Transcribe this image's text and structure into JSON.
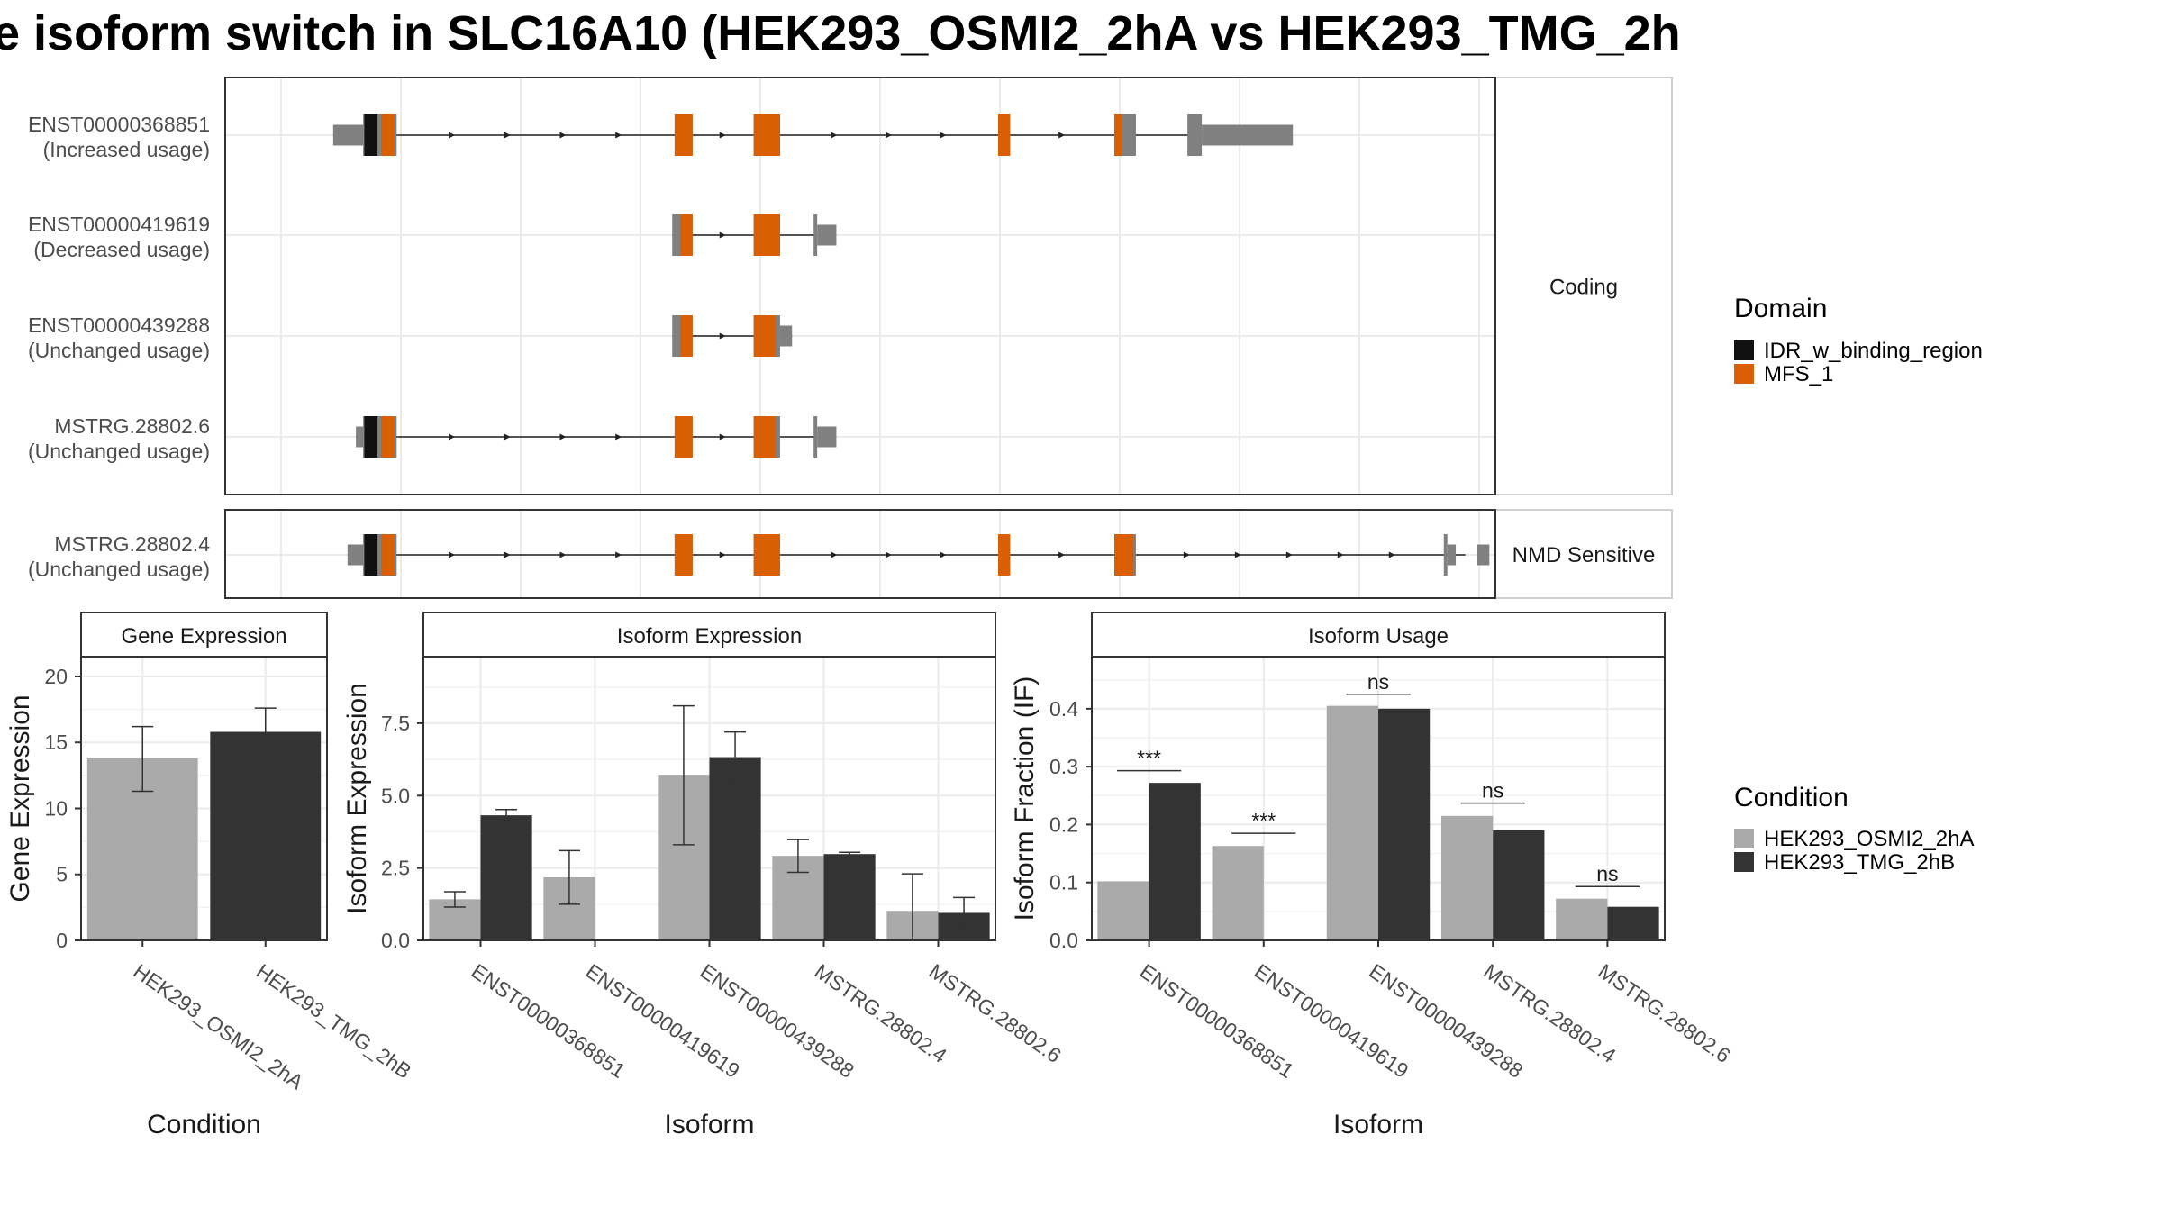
{
  "title": "e isoform switch in SLC16A10 (HEK293_OSMI2_2hA vs HEK293_TMG_2h",
  "colors": {
    "idr": "#111111",
    "mfs": "#d95f02",
    "utr": "#808080",
    "cond_a": "#aaaaaa",
    "cond_b": "#333333",
    "grid": "#ebebeb",
    "strip_bg": "#ffffff",
    "panel_border": "#333333"
  },
  "legends": {
    "domain": {
      "title": "Domain",
      "items": [
        {
          "label": "IDR_w_binding_region",
          "color": "#111111"
        },
        {
          "label": "MFS_1",
          "color": "#d95f02"
        }
      ]
    },
    "condition": {
      "title": "Condition",
      "items": [
        {
          "label": "HEK293_OSMI2_2hA",
          "color": "#aaaaaa"
        },
        {
          "label": "HEK293_TMG_2hB",
          "color": "#333333"
        }
      ]
    }
  },
  "chart_data": [
    {
      "type": "table",
      "name": "structure",
      "facet_labels": [
        "Coding",
        "NMD Sensitive"
      ],
      "transcripts": [
        {
          "id": "ENST00000368851",
          "usage": "(Increased usage)",
          "facet": "Coding",
          "start": 0.045,
          "end": 0.805,
          "exons": [
            {
              "s": 0.045,
              "e": 0.07,
              "h": "utr"
            },
            {
              "s": 0.07,
              "e": 0.085,
              "h": "cds",
              "dom": [
                "idr",
                0.071,
                0.082
              ]
            },
            {
              "s": 0.085,
              "e": 0.098,
              "h": "cds",
              "dom": [
                "mfs",
                0.085,
                0.096
              ]
            },
            {
              "s": 0.33,
              "e": 0.345,
              "h": "cds",
              "dom": [
                "mfs",
                0.33,
                0.345
              ]
            },
            {
              "s": 0.396,
              "e": 0.418,
              "h": "cds",
              "dom": [
                "mfs",
                0.396,
                0.418
              ]
            },
            {
              "s": 0.6,
              "e": 0.61,
              "h": "cds",
              "dom": [
                "mfs",
                0.6,
                0.61
              ]
            },
            {
              "s": 0.697,
              "e": 0.715,
              "h": "cds",
              "dom": [
                "mfs",
                0.697,
                0.703
              ]
            },
            {
              "s": 0.758,
              "e": 0.77,
              "h": "cds"
            },
            {
              "s": 0.77,
              "e": 0.846,
              "h": "utr"
            }
          ]
        },
        {
          "id": "ENST00000419619",
          "usage": "(Decreased usage)",
          "facet": "Coding",
          "start": 0.328,
          "end": 0.462,
          "exons": [
            {
              "s": 0.328,
              "e": 0.345,
              "h": "cds",
              "dom": [
                "mfs",
                0.335,
                0.345
              ]
            },
            {
              "s": 0.396,
              "e": 0.418,
              "h": "cds",
              "dom": [
                "mfs",
                0.396,
                0.418
              ]
            },
            {
              "s": 0.446,
              "e": 0.449,
              "h": "cds"
            },
            {
              "s": 0.449,
              "e": 0.465,
              "h": "utr"
            }
          ]
        },
        {
          "id": "ENST00000439288",
          "usage": "(Unchanged usage)",
          "facet": "Coding",
          "start": 0.328,
          "end": 0.428,
          "exons": [
            {
              "s": 0.328,
              "e": 0.345,
              "h": "cds",
              "dom": [
                "mfs",
                0.335,
                0.345
              ]
            },
            {
              "s": 0.396,
              "e": 0.418,
              "h": "cds",
              "dom": [
                "mfs",
                0.396,
                0.414
              ]
            },
            {
              "s": 0.418,
              "e": 0.428,
              "h": "utr"
            }
          ]
        },
        {
          "id": "MSTRG.28802.6",
          "usage": "(Unchanged usage)",
          "facet": "Coding",
          "start": 0.064,
          "end": 0.462,
          "exons": [
            {
              "s": 0.064,
              "e": 0.07,
              "h": "utr"
            },
            {
              "s": 0.07,
              "e": 0.085,
              "h": "cds",
              "dom": [
                "idr",
                0.071,
                0.082
              ]
            },
            {
              "s": 0.085,
              "e": 0.098,
              "h": "cds",
              "dom": [
                "mfs",
                0.085,
                0.096
              ]
            },
            {
              "s": 0.33,
              "e": 0.345,
              "h": "cds",
              "dom": [
                "mfs",
                0.33,
                0.345
              ]
            },
            {
              "s": 0.396,
              "e": 0.418,
              "h": "cds",
              "dom": [
                "mfs",
                0.396,
                0.414
              ]
            },
            {
              "s": 0.446,
              "e": 0.449,
              "h": "cds"
            },
            {
              "s": 0.449,
              "e": 0.465,
              "h": "utr"
            }
          ]
        },
        {
          "id": "MSTRG.28802.4",
          "usage": "(Unchanged usage)",
          "facet": "NMD Sensitive",
          "start": 0.057,
          "end": 0.99,
          "exons": [
            {
              "s": 0.057,
              "e": 0.07,
              "h": "utr"
            },
            {
              "s": 0.07,
              "e": 0.085,
              "h": "cds",
              "dom": [
                "idr",
                0.071,
                0.082
              ]
            },
            {
              "s": 0.085,
              "e": 0.098,
              "h": "cds",
              "dom": [
                "mfs",
                0.085,
                0.096
              ]
            },
            {
              "s": 0.33,
              "e": 0.345,
              "h": "cds",
              "dom": [
                "mfs",
                0.33,
                0.345
              ]
            },
            {
              "s": 0.396,
              "e": 0.418,
              "h": "cds",
              "dom": [
                "mfs",
                0.396,
                0.418
              ]
            },
            {
              "s": 0.6,
              "e": 0.61,
              "h": "cds",
              "dom": [
                "mfs",
                0.6,
                0.61
              ]
            },
            {
              "s": 0.697,
              "e": 0.715,
              "h": "cds",
              "dom": [
                "mfs",
                0.697,
                0.713
              ]
            },
            {
              "s": 0.972,
              "e": 0.975,
              "h": "cds"
            },
            {
              "s": 0.975,
              "e": 0.982,
              "h": "utr"
            },
            {
              "s": 1.0,
              "e": 1.01,
              "h": "utr"
            }
          ]
        }
      ]
    },
    {
      "type": "bar",
      "title": "Gene Expression",
      "xlabel": "Condition",
      "ylabel": "Gene Expression",
      "ylim": [
        0,
        21.5
      ],
      "yticks": [
        0,
        5,
        10,
        15,
        20
      ],
      "categories": [
        "HEK293_OSMI2_2hA",
        "HEK293_TMG_2hB"
      ],
      "series": [
        {
          "name": "HEK293_OSMI2_2hA",
          "values": [
            13.8,
            null
          ],
          "err_low": [
            11.3,
            null
          ],
          "err_high": [
            16.2,
            null
          ]
        },
        {
          "name": "HEK293_TMG_2hB",
          "values": [
            null,
            15.8
          ],
          "err_low": [
            null,
            14.0
          ],
          "err_high": [
            null,
            17.6
          ]
        }
      ]
    },
    {
      "type": "bar",
      "title": "Isoform Expression",
      "xlabel": "Isoform",
      "ylabel": "Isoform Expression",
      "ylim": [
        0,
        9.8
      ],
      "yticks": [
        "0.0",
        "2.5",
        "5.0",
        "7.5"
      ],
      "categories": [
        "ENST00000368851",
        "ENST00000419619",
        "ENST00000439288",
        "MSTRG.28802.4",
        "MSTRG.28802.6"
      ],
      "series": [
        {
          "name": "HEK293_OSMI2_2hA",
          "values": [
            1.42,
            2.18,
            5.72,
            2.92,
            1.02
          ],
          "err_low": [
            1.15,
            1.25,
            3.3,
            2.35,
            0.0
          ],
          "err_high": [
            1.68,
            3.1,
            8.1,
            3.48,
            2.3
          ]
        },
        {
          "name": "HEK293_TMG_2hB",
          "values": [
            4.32,
            0.0,
            6.33,
            2.98,
            0.95
          ],
          "err_low": [
            4.12,
            0.0,
            5.45,
            2.92,
            0.42
          ],
          "err_high": [
            4.52,
            0.0,
            7.2,
            3.04,
            1.48
          ]
        }
      ]
    },
    {
      "type": "bar",
      "title": "Isoform Usage",
      "xlabel": "Isoform",
      "ylabel": "Isoform Fraction (IF)",
      "ylim": [
        0,
        0.49
      ],
      "yticks": [
        "0.0",
        "0.1",
        "0.2",
        "0.3",
        "0.4"
      ],
      "categories": [
        "ENST00000368851",
        "ENST00000419619",
        "ENST00000439288",
        "MSTRG.28802.4",
        "MSTRG.28802.6"
      ],
      "series": [
        {
          "name": "HEK293_OSMI2_2hA",
          "values": [
            0.102,
            0.163,
            0.405,
            0.215,
            0.072
          ]
        },
        {
          "name": "HEK293_TMG_2hB",
          "values": [
            0.272,
            0.0,
            0.4,
            0.19,
            0.058
          ]
        }
      ],
      "significance": [
        {
          "label": "***",
          "y": 0.293
        },
        {
          "label": "***",
          "y": 0.185
        },
        {
          "label": "ns",
          "y": 0.425
        },
        {
          "label": "ns",
          "y": 0.237
        },
        {
          "label": "ns",
          "y": 0.093
        }
      ]
    }
  ]
}
